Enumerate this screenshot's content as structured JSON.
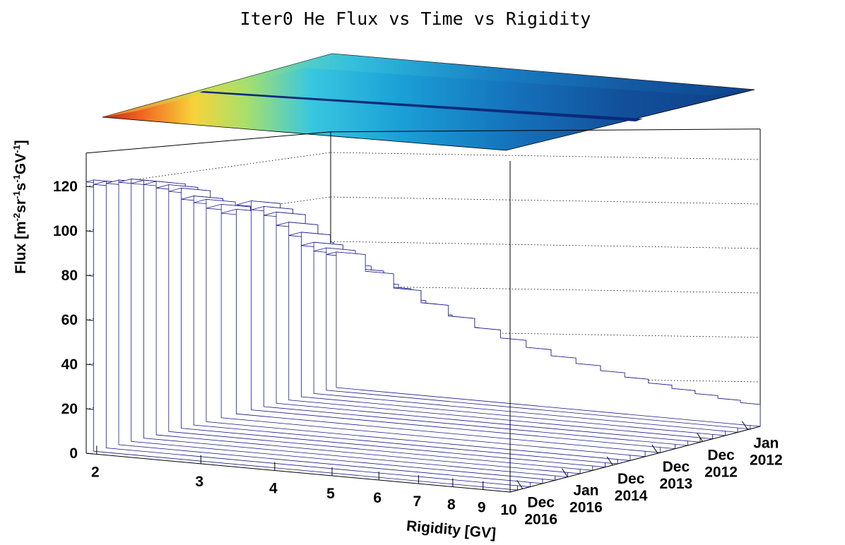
{
  "chart_data": {
    "type": "surface",
    "title": "Iter0 He Flux vs Time vs Rigidity",
    "xlabel": "Rigidity [GV]",
    "ylabel": "",
    "zlabel_base": "Flux [m",
    "zlabel_sup1": "-2",
    "zlabel_mid1": "sr",
    "zlabel_sup2": "-1",
    "zlabel_mid2": "s",
    "zlabel_sup3": "-1",
    "zlabel_mid3": "GV",
    "zlabel_sup4": "-1",
    "zlabel_end": "]",
    "x_scale": "log",
    "xlim": [
      1.92,
      10
    ],
    "x_ticks": [
      {
        "value": 2,
        "label": "2"
      },
      {
        "value": 3,
        "label": "3"
      },
      {
        "value": 4,
        "label": "4"
      },
      {
        "value": 5,
        "label": "5"
      },
      {
        "value": 6,
        "label": "6"
      },
      {
        "value": 7,
        "label": "7"
      },
      {
        "value": 8,
        "label": "8"
      },
      {
        "value": 9,
        "label": "9"
      },
      {
        "value": 10,
        "label": "10"
      }
    ],
    "zlim": [
      0,
      135
    ],
    "z_ticks": [
      0,
      20,
      40,
      60,
      80,
      100,
      120
    ],
    "time_ticks": [
      {
        "line1": "Dec",
        "line2": "2016"
      },
      {
        "line1": "Jan",
        "line2": "2016"
      },
      {
        "line1": "Dec",
        "line2": "2014"
      },
      {
        "line1": "Dec",
        "line2": "2013"
      },
      {
        "line1": "Dec",
        "line2": "2012"
      },
      {
        "line1": "Jan",
        "line2": "2012"
      }
    ],
    "rigidity_bins": [
      1.92,
      2.15,
      2.4,
      2.67,
      2.97,
      3.29,
      3.64,
      4.02,
      4.43,
      4.88,
      5.37,
      5.9,
      6.47,
      7.09,
      7.76,
      8.48,
      9.26,
      10.0
    ],
    "time_fraction_bins": [
      0.0,
      0.04,
      0.09,
      0.14,
      0.19,
      0.24,
      0.29,
      0.34,
      0.4,
      0.46,
      0.52,
      0.57,
      0.62,
      0.67,
      0.72,
      0.77,
      0.82,
      0.87,
      0.92,
      0.97,
      1.0
    ],
    "flux_at_lowest_rigidity_by_time": [
      61,
      64,
      68,
      74,
      80,
      86,
      90,
      94,
      92,
      96,
      100,
      103,
      108,
      111,
      114,
      116,
      118,
      119,
      120,
      122
    ],
    "flux_at_highest_rigidity_by_time": [
      9,
      9,
      10,
      10,
      11,
      11,
      11,
      12,
      12,
      12,
      13,
      13,
      13,
      14,
      14,
      14,
      14,
      15,
      15,
      15
    ],
    "grid": true,
    "colormap_projection": "top",
    "colors": {
      "mesh": "#1a1a8c",
      "background": "#ffffff",
      "frame": "#000000"
    }
  }
}
